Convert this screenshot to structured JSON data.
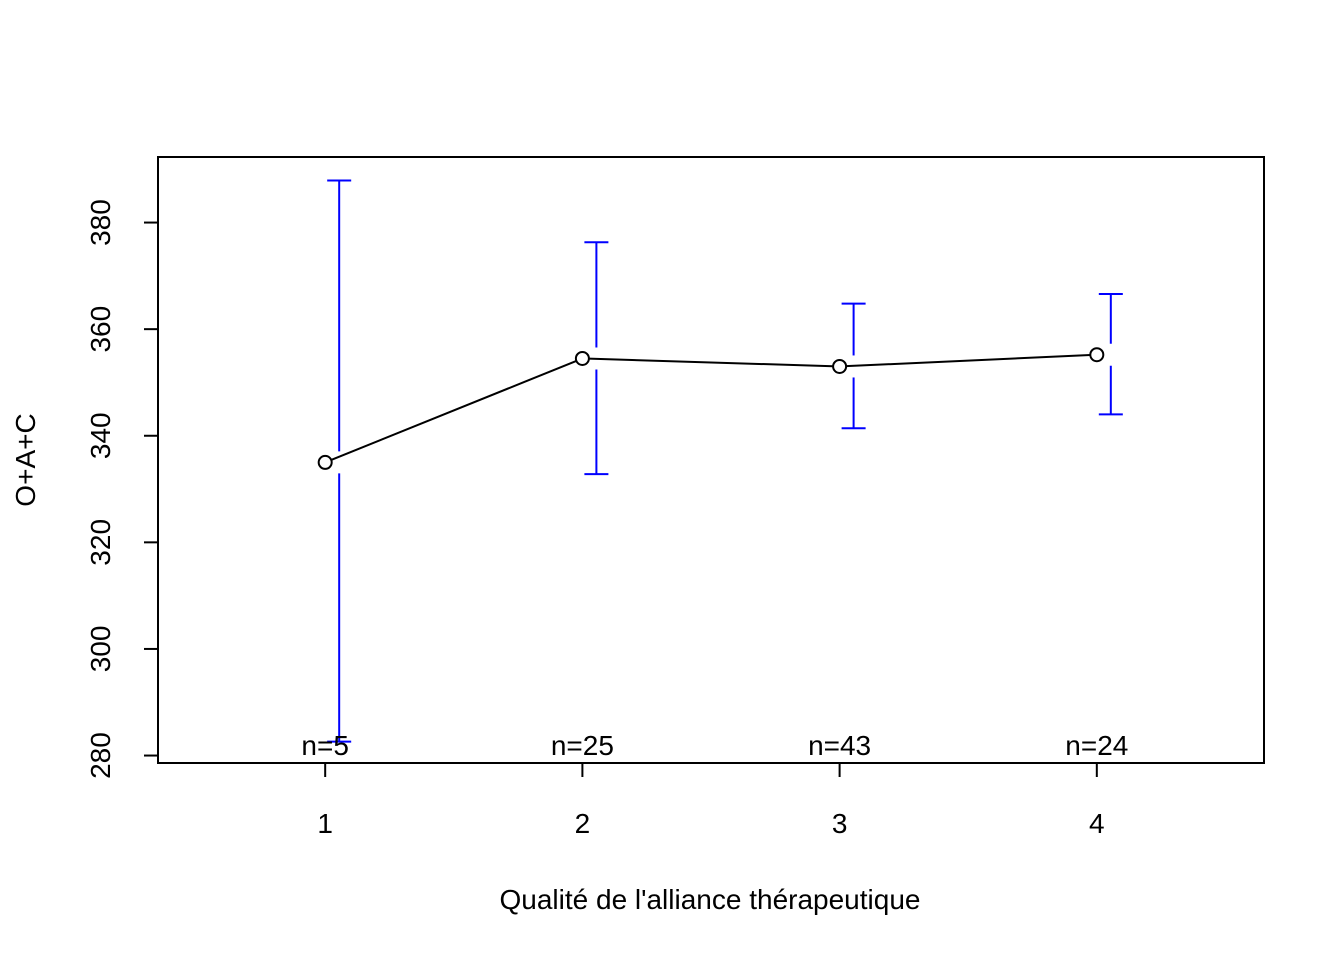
{
  "chart_data": {
    "type": "line",
    "title": "",
    "xlabel": "Qualité de l'alliance thérapeutique",
    "ylabel": "O+A+C",
    "x": [
      1,
      2,
      3,
      4
    ],
    "x_tick_labels": [
      "1",
      "2",
      "3",
      "4"
    ],
    "xlim": [
      0.35,
      4.65
    ],
    "y_ticks": [
      280,
      300,
      320,
      340,
      360,
      380
    ],
    "y_tick_labels": [
      "280",
      "300",
      "320",
      "340",
      "360",
      "380"
    ],
    "ylim": [
      278.6,
      392.3
    ],
    "grid": false,
    "legend": "none",
    "series": [
      {
        "values": [
          335.0,
          354.5,
          353.0,
          355.2
        ],
        "error_lower": [
          282.6,
          332.8,
          341.4,
          344.0
        ],
        "error_upper": [
          387.9,
          376.3,
          364.8,
          366.6
        ]
      }
    ],
    "annotations": [
      "n=5",
      "n=25",
      "n=43",
      "n=24"
    ],
    "colors": {
      "line": "#000000",
      "error_bars": "#0000ff",
      "frame": "#000000"
    }
  }
}
